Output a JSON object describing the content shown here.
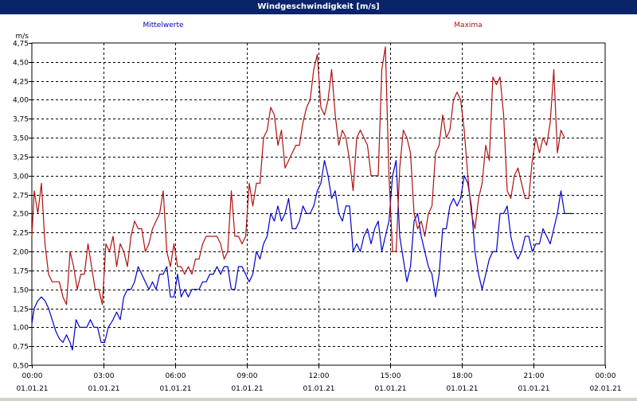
{
  "window": {
    "title": "Windgeschwindigkeit [m/s]"
  },
  "chart_data": {
    "type": "line",
    "title": "Windgeschwindigkeit [m/s]",
    "ylabel": "m/s",
    "ylim": [
      0.5,
      4.75
    ],
    "xlim": [
      0,
      24
    ],
    "grid": true,
    "y_ticks": [
      "0,50",
      "0,75",
      "1,00",
      "1,25",
      "1,50",
      "1,75",
      "2,00",
      "2,25",
      "2,50",
      "2,75",
      "3,00",
      "3,25",
      "3,50",
      "3,75",
      "4,00",
      "4,25",
      "4,50",
      "4,75"
    ],
    "x_ticks": [
      {
        "time": "00:00",
        "date": "01.01.21"
      },
      {
        "time": "03:00",
        "date": "01.01.21"
      },
      {
        "time": "06:00",
        "date": "01.01.21"
      },
      {
        "time": "09:00",
        "date": "01.01.21"
      },
      {
        "time": "12:00",
        "date": "01.01.21"
      },
      {
        "time": "15:00",
        "date": "01.01.21"
      },
      {
        "time": "18:00",
        "date": "01.01.21"
      },
      {
        "time": "21:00",
        "date": "01.01.21"
      },
      {
        "time": "00:00",
        "date": "02.01.21"
      }
    ],
    "colors": {
      "mittelwerte": "#0000cc",
      "maxima": "#b01010"
    },
    "series": [
      {
        "name": "Mittelwerte",
        "color": "#0000cc",
        "values": [
          [
            0.0,
            1.05
          ],
          [
            0.1,
            1.25
          ],
          [
            0.25,
            1.35
          ],
          [
            0.4,
            1.4
          ],
          [
            0.55,
            1.35
          ],
          [
            0.7,
            1.25
          ],
          [
            0.85,
            1.1
          ],
          [
            1.0,
            0.95
          ],
          [
            1.15,
            0.85
          ],
          [
            1.3,
            0.8
          ],
          [
            1.45,
            0.9
          ],
          [
            1.6,
            0.8
          ],
          [
            1.7,
            0.7
          ],
          [
            1.85,
            1.1
          ],
          [
            2.0,
            1.0
          ],
          [
            2.15,
            1.0
          ],
          [
            2.3,
            1.0
          ],
          [
            2.45,
            1.1
          ],
          [
            2.6,
            1.0
          ],
          [
            2.75,
            1.0
          ],
          [
            2.9,
            0.8
          ],
          [
            3.05,
            0.8
          ],
          [
            3.2,
            1.0
          ],
          [
            3.4,
            1.1
          ],
          [
            3.55,
            1.2
          ],
          [
            3.7,
            1.1
          ],
          [
            3.85,
            1.4
          ],
          [
            4.0,
            1.5
          ],
          [
            4.15,
            1.5
          ],
          [
            4.3,
            1.6
          ],
          [
            4.45,
            1.8
          ],
          [
            4.6,
            1.7
          ],
          [
            4.75,
            1.6
          ],
          [
            4.9,
            1.5
          ],
          [
            5.05,
            1.6
          ],
          [
            5.2,
            1.5
          ],
          [
            5.35,
            1.7
          ],
          [
            5.5,
            1.7
          ],
          [
            5.65,
            1.8
          ],
          [
            5.8,
            1.4
          ],
          [
            5.95,
            1.4
          ],
          [
            6.1,
            1.7
          ],
          [
            6.25,
            1.4
          ],
          [
            6.4,
            1.5
          ],
          [
            6.55,
            1.4
          ],
          [
            6.7,
            1.5
          ],
          [
            6.85,
            1.5
          ],
          [
            7.0,
            1.5
          ],
          [
            7.15,
            1.6
          ],
          [
            7.3,
            1.6
          ],
          [
            7.45,
            1.7
          ],
          [
            7.6,
            1.7
          ],
          [
            7.75,
            1.8
          ],
          [
            7.9,
            1.7
          ],
          [
            8.05,
            1.8
          ],
          [
            8.2,
            1.8
          ],
          [
            8.35,
            1.5
          ],
          [
            8.5,
            1.5
          ],
          [
            8.65,
            1.8
          ],
          [
            8.8,
            1.8
          ],
          [
            8.95,
            1.7
          ],
          [
            9.1,
            1.6
          ],
          [
            9.25,
            1.7
          ],
          [
            9.4,
            2.0
          ],
          [
            9.55,
            1.9
          ],
          [
            9.7,
            2.1
          ],
          [
            9.85,
            2.2
          ],
          [
            10.0,
            2.5
          ],
          [
            10.15,
            2.4
          ],
          [
            10.3,
            2.6
          ],
          [
            10.45,
            2.4
          ],
          [
            10.6,
            2.5
          ],
          [
            10.75,
            2.7
          ],
          [
            10.9,
            2.3
          ],
          [
            11.05,
            2.3
          ],
          [
            11.2,
            2.4
          ],
          [
            11.35,
            2.6
          ],
          [
            11.5,
            2.5
          ],
          [
            11.65,
            2.5
          ],
          [
            11.8,
            2.6
          ],
          [
            11.95,
            2.8
          ],
          [
            12.1,
            2.9
          ],
          [
            12.25,
            3.2
          ],
          [
            12.4,
            3.0
          ],
          [
            12.55,
            2.7
          ],
          [
            12.7,
            2.8
          ],
          [
            12.85,
            2.5
          ],
          [
            13.0,
            2.4
          ],
          [
            13.15,
            2.6
          ],
          [
            13.3,
            2.6
          ],
          [
            13.45,
            2.0
          ],
          [
            13.6,
            2.1
          ],
          [
            13.75,
            2.0
          ],
          [
            13.9,
            2.2
          ],
          [
            14.05,
            2.3
          ],
          [
            14.2,
            2.1
          ],
          [
            14.35,
            2.3
          ],
          [
            14.5,
            2.4
          ],
          [
            14.65,
            2.0
          ],
          [
            14.8,
            2.2
          ],
          [
            14.95,
            2.4
          ],
          [
            15.1,
            3.0
          ],
          [
            15.25,
            3.2
          ],
          [
            15.4,
            2.2
          ],
          [
            15.55,
            1.9
          ],
          [
            15.7,
            1.6
          ],
          [
            15.85,
            1.8
          ],
          [
            16.0,
            2.4
          ],
          [
            16.15,
            2.5
          ],
          [
            16.3,
            2.2
          ],
          [
            16.45,
            2.0
          ],
          [
            16.6,
            1.8
          ],
          [
            16.75,
            1.7
          ],
          [
            16.9,
            1.4
          ],
          [
            17.05,
            1.7
          ],
          [
            17.2,
            2.3
          ],
          [
            17.35,
            2.3
          ],
          [
            17.5,
            2.6
          ],
          [
            17.65,
            2.7
          ],
          [
            17.8,
            2.6
          ],
          [
            17.95,
            2.7
          ],
          [
            18.1,
            3.0
          ],
          [
            18.25,
            2.9
          ],
          [
            18.4,
            2.6
          ],
          [
            18.55,
            2.0
          ],
          [
            18.7,
            1.7
          ],
          [
            18.85,
            1.5
          ],
          [
            19.0,
            1.7
          ],
          [
            19.15,
            1.9
          ],
          [
            19.3,
            2.0
          ],
          [
            19.45,
            2.0
          ],
          [
            19.6,
            2.5
          ],
          [
            19.75,
            2.5
          ],
          [
            19.9,
            2.6
          ],
          [
            20.05,
            2.2
          ],
          [
            20.2,
            2.0
          ],
          [
            20.35,
            1.9
          ],
          [
            20.5,
            2.0
          ],
          [
            20.65,
            2.2
          ],
          [
            20.8,
            2.2
          ],
          [
            20.95,
            2.0
          ],
          [
            21.1,
            2.1
          ],
          [
            21.25,
            2.1
          ],
          [
            21.4,
            2.3
          ],
          [
            21.55,
            2.2
          ],
          [
            21.7,
            2.1
          ],
          [
            21.85,
            2.3
          ],
          [
            22.0,
            2.5
          ],
          [
            22.15,
            2.8
          ],
          [
            22.3,
            2.5
          ],
          [
            22.45,
            2.5
          ],
          [
            22.6,
            2.5
          ]
        ]
      },
      {
        "name": "Maxima",
        "color": "#b01010",
        "values": [
          [
            0.0,
            2.2
          ],
          [
            0.1,
            2.8
          ],
          [
            0.25,
            2.5
          ],
          [
            0.4,
            2.9
          ],
          [
            0.55,
            2.1
          ],
          [
            0.7,
            1.7
          ],
          [
            0.85,
            1.6
          ],
          [
            1.0,
            1.6
          ],
          [
            1.15,
            1.6
          ],
          [
            1.3,
            1.4
          ],
          [
            1.45,
            1.3
          ],
          [
            1.6,
            2.0
          ],
          [
            1.75,
            1.8
          ],
          [
            1.9,
            1.5
          ],
          [
            2.05,
            1.7
          ],
          [
            2.2,
            1.7
          ],
          [
            2.35,
            2.1
          ],
          [
            2.5,
            1.8
          ],
          [
            2.65,
            1.5
          ],
          [
            2.8,
            1.5
          ],
          [
            2.95,
            1.3
          ],
          [
            3.1,
            2.1
          ],
          [
            3.25,
            2.0
          ],
          [
            3.4,
            2.2
          ],
          [
            3.55,
            1.8
          ],
          [
            3.7,
            2.1
          ],
          [
            3.85,
            2.0
          ],
          [
            4.0,
            1.8
          ],
          [
            4.15,
            2.2
          ],
          [
            4.3,
            2.4
          ],
          [
            4.45,
            2.3
          ],
          [
            4.6,
            2.3
          ],
          [
            4.75,
            2.0
          ],
          [
            4.9,
            2.1
          ],
          [
            5.05,
            2.3
          ],
          [
            5.2,
            2.4
          ],
          [
            5.35,
            2.5
          ],
          [
            5.5,
            2.8
          ],
          [
            5.65,
            2.0
          ],
          [
            5.8,
            1.8
          ],
          [
            5.95,
            2.1
          ],
          [
            6.1,
            1.8
          ],
          [
            6.25,
            1.8
          ],
          [
            6.4,
            1.7
          ],
          [
            6.55,
            1.8
          ],
          [
            6.7,
            1.7
          ],
          [
            6.85,
            1.9
          ],
          [
            7.0,
            1.9
          ],
          [
            7.15,
            2.1
          ],
          [
            7.3,
            2.2
          ],
          [
            7.45,
            2.2
          ],
          [
            7.6,
            2.2
          ],
          [
            7.75,
            2.2
          ],
          [
            7.9,
            2.1
          ],
          [
            8.05,
            1.9
          ],
          [
            8.2,
            2.0
          ],
          [
            8.35,
            2.8
          ],
          [
            8.5,
            2.2
          ],
          [
            8.65,
            2.2
          ],
          [
            8.8,
            2.1
          ],
          [
            8.95,
            2.2
          ],
          [
            9.1,
            2.9
          ],
          [
            9.25,
            2.6
          ],
          [
            9.4,
            2.9
          ],
          [
            9.55,
            2.9
          ],
          [
            9.7,
            3.5
          ],
          [
            9.85,
            3.6
          ],
          [
            10.0,
            3.9
          ],
          [
            10.15,
            3.8
          ],
          [
            10.3,
            3.4
          ],
          [
            10.45,
            3.6
          ],
          [
            10.6,
            3.1
          ],
          [
            10.75,
            3.2
          ],
          [
            10.9,
            3.3
          ],
          [
            11.05,
            3.4
          ],
          [
            11.2,
            3.4
          ],
          [
            11.35,
            3.7
          ],
          [
            11.5,
            3.9
          ],
          [
            11.65,
            4.0
          ],
          [
            11.8,
            4.4
          ],
          [
            11.95,
            4.6
          ],
          [
            12.1,
            3.9
          ],
          [
            12.25,
            3.8
          ],
          [
            12.4,
            4.0
          ],
          [
            12.55,
            4.4
          ],
          [
            12.7,
            3.8
          ],
          [
            12.85,
            3.4
          ],
          [
            13.0,
            3.6
          ],
          [
            13.15,
            3.5
          ],
          [
            13.3,
            3.2
          ],
          [
            13.45,
            2.8
          ],
          [
            13.6,
            3.5
          ],
          [
            13.75,
            3.6
          ],
          [
            13.9,
            3.5
          ],
          [
            14.05,
            3.4
          ],
          [
            14.2,
            3.0
          ],
          [
            14.35,
            3.0
          ],
          [
            14.5,
            3.0
          ],
          [
            14.65,
            4.4
          ],
          [
            14.8,
            4.7
          ],
          [
            14.95,
            3.0
          ],
          [
            15.1,
            2.0
          ],
          [
            15.25,
            2.0
          ],
          [
            15.4,
            3.1
          ],
          [
            15.55,
            3.6
          ],
          [
            15.7,
            3.5
          ],
          [
            15.85,
            3.3
          ],
          [
            16.0,
            2.5
          ],
          [
            16.15,
            2.3
          ],
          [
            16.3,
            2.4
          ],
          [
            16.45,
            2.2
          ],
          [
            16.6,
            2.5
          ],
          [
            16.75,
            2.6
          ],
          [
            16.9,
            3.3
          ],
          [
            17.05,
            3.4
          ],
          [
            17.2,
            3.8
          ],
          [
            17.35,
            3.5
          ],
          [
            17.5,
            3.6
          ],
          [
            17.65,
            4.0
          ],
          [
            17.8,
            4.1
          ],
          [
            17.95,
            4.0
          ],
          [
            18.1,
            3.6
          ],
          [
            18.25,
            3.0
          ],
          [
            18.4,
            2.5
          ],
          [
            18.55,
            2.3
          ],
          [
            18.7,
            2.7
          ],
          [
            18.85,
            2.9
          ],
          [
            19.0,
            3.4
          ],
          [
            19.15,
            3.2
          ],
          [
            19.3,
            4.3
          ],
          [
            19.45,
            4.2
          ],
          [
            19.6,
            4.3
          ],
          [
            19.75,
            3.8
          ],
          [
            19.9,
            2.8
          ],
          [
            20.05,
            2.7
          ],
          [
            20.2,
            3.0
          ],
          [
            20.35,
            3.1
          ],
          [
            20.5,
            2.9
          ],
          [
            20.65,
            2.7
          ],
          [
            20.8,
            2.7
          ],
          [
            20.95,
            3.2
          ],
          [
            21.1,
            3.5
          ],
          [
            21.25,
            3.3
          ],
          [
            21.4,
            3.5
          ],
          [
            21.55,
            3.4
          ],
          [
            21.7,
            3.7
          ],
          [
            21.85,
            4.4
          ],
          [
            22.0,
            3.3
          ],
          [
            22.15,
            3.6
          ],
          [
            22.3,
            3.5
          ]
        ]
      }
    ]
  }
}
